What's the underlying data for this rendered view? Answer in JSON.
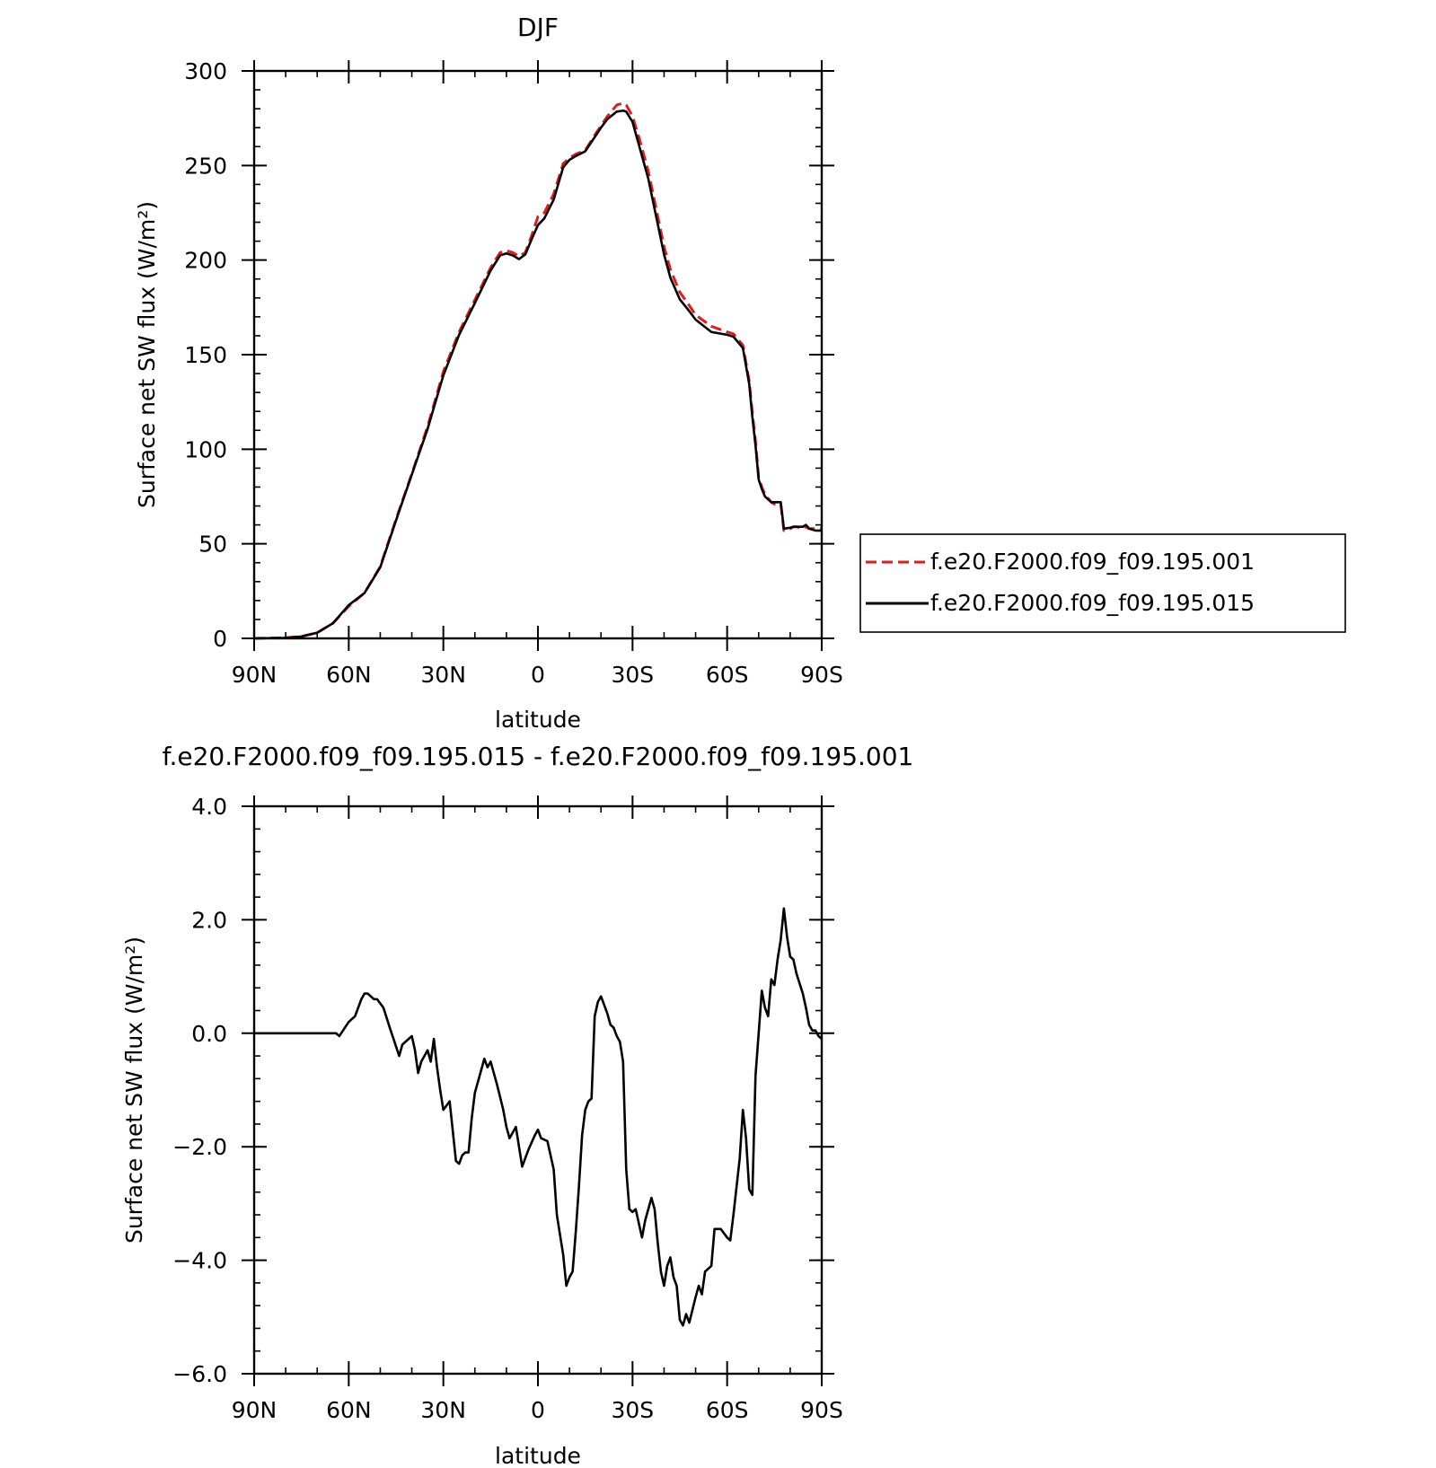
{
  "chart_data": [
    {
      "type": "line",
      "title": "DJF",
      "xlabel": "latitude",
      "ylabel": "Surface net SW flux (W/m²)",
      "xlim": [
        90,
        -90
      ],
      "ylim": [
        0,
        300
      ],
      "x_ticks": [
        {
          "value": 90,
          "label": "90N"
        },
        {
          "value": 60,
          "label": "60N"
        },
        {
          "value": 30,
          "label": "30N"
        },
        {
          "value": 0,
          "label": "0"
        },
        {
          "value": -30,
          "label": "30S"
        },
        {
          "value": -60,
          "label": "60S"
        },
        {
          "value": -90,
          "label": "90S"
        }
      ],
      "y_ticks": [
        {
          "value": 0,
          "label": "0"
        },
        {
          "value": 50,
          "label": "50"
        },
        {
          "value": 100,
          "label": "100"
        },
        {
          "value": 150,
          "label": "150"
        },
        {
          "value": 200,
          "label": "200"
        },
        {
          "value": 250,
          "label": "250"
        },
        {
          "value": 300,
          "label": "300"
        }
      ],
      "grid": false,
      "legend_position": "right",
      "series": [
        {
          "name": "f.e20.F2000.f09_f09.195.001",
          "color": "#e41a1c",
          "dash": "dashed",
          "x": [
            90,
            80,
            75,
            70,
            65,
            60,
            55,
            50,
            45,
            40,
            35,
            30,
            25,
            20,
            15,
            12,
            10,
            8,
            6,
            4,
            2,
            0,
            -2,
            -5,
            -8,
            -10,
            -12,
            -15,
            -18,
            -20,
            -22,
            -25,
            -27,
            -28,
            -30,
            -32,
            -35,
            -38,
            -40,
            -42,
            -45,
            -48,
            -50,
            -55,
            -60,
            -62,
            -65,
            -67,
            -68,
            -69,
            -70,
            -71,
            -72,
            -74,
            -75,
            -77,
            -78,
            -80,
            -81,
            -82,
            -84,
            -85,
            -86,
            -88,
            -90
          ],
          "values": [
            0,
            0.3,
            1,
            3,
            8,
            17,
            24,
            38,
            63,
            87,
            112,
            141,
            162,
            179,
            196,
            204,
            205,
            204,
            202,
            204,
            213,
            223,
            225,
            235,
            251,
            254,
            256,
            258,
            266,
            271,
            276,
            282,
            283,
            282,
            276,
            265,
            247,
            223,
            207,
            195,
            183,
            176,
            171,
            165,
            162,
            161,
            155,
            136,
            119,
            104,
            85,
            80,
            76,
            72,
            71,
            71,
            57,
            58,
            59,
            59,
            58,
            59,
            58,
            58,
            58
          ]
        },
        {
          "name": "f.e20.F2000.f09_f09.195.015",
          "color": "#000000",
          "dash": "solid",
          "x": [
            90,
            80,
            75,
            70,
            65,
            60,
            55,
            50,
            45,
            40,
            35,
            30,
            25,
            20,
            15,
            12,
            10,
            8,
            6,
            4,
            2,
            0,
            -2,
            -5,
            -8,
            -10,
            -12,
            -15,
            -18,
            -20,
            -22,
            -25,
            -27,
            -28,
            -30,
            -32,
            -35,
            -38,
            -40,
            -42,
            -45,
            -48,
            -50,
            -55,
            -60,
            -62,
            -65,
            -67,
            -68,
            -69,
            -70,
            -71,
            -72,
            -74,
            -75,
            -77,
            -78,
            -80,
            -81,
            -82,
            -84,
            -85,
            -86,
            -88,
            -90
          ],
          "values": [
            0,
            0.3,
            1,
            3,
            8,
            17.6,
            24,
            37.6,
            62.4,
            86.6,
            110.7,
            139,
            160.5,
            177.3,
            194.5,
            202.5,
            203.5,
            202.5,
            200.5,
            203,
            211,
            218.5,
            222,
            232,
            249,
            253,
            255,
            257.5,
            265,
            270,
            274.5,
            278.5,
            279,
            278.5,
            273,
            261,
            243,
            219,
            203,
            190.7,
            179.2,
            173,
            168.5,
            162,
            160.5,
            159.5,
            153.5,
            134.5,
            117,
            102,
            84,
            79,
            75,
            72,
            72,
            72,
            58,
            58.5,
            59,
            59,
            59,
            60,
            58,
            57,
            57
          ]
        }
      ]
    },
    {
      "type": "line",
      "title": "f.e20.F2000.f09_f09.195.015 - f.e20.F2000.f09_f09.195.001",
      "xlabel": "latitude",
      "ylabel": "Surface net SW flux (W/m²)",
      "xlim": [
        90,
        -90
      ],
      "ylim": [
        -6,
        4
      ],
      "x_ticks": [
        {
          "value": 90,
          "label": "90N"
        },
        {
          "value": 60,
          "label": "60N"
        },
        {
          "value": 30,
          "label": "30N"
        },
        {
          "value": 0,
          "label": "0"
        },
        {
          "value": -30,
          "label": "30S"
        },
        {
          "value": -60,
          "label": "60S"
        },
        {
          "value": -90,
          "label": "90S"
        }
      ],
      "y_ticks": [
        {
          "value": -6,
          "label": "−6.0"
        },
        {
          "value": -4,
          "label": "−4.0"
        },
        {
          "value": -2,
          "label": "−2.0"
        },
        {
          "value": 0,
          "label": "0.0"
        },
        {
          "value": 2,
          "label": "2.0"
        },
        {
          "value": 4,
          "label": "4.0"
        }
      ],
      "grid": false,
      "series": [
        {
          "color": "#000000",
          "dash": "solid",
          "x": [
            90,
            80,
            72,
            68,
            64,
            63,
            60,
            58,
            57,
            56,
            55,
            54,
            52,
            51,
            49,
            47,
            44,
            43,
            41,
            40,
            39,
            38,
            37,
            35,
            34,
            33,
            32,
            31,
            30,
            28,
            26,
            25,
            24,
            23,
            22,
            21,
            20,
            19,
            17,
            16,
            15,
            14,
            13,
            11,
            10,
            9,
            7,
            5,
            3,
            1,
            0,
            -1,
            -3,
            -5,
            -6,
            -8,
            -9,
            -10,
            -11,
            -12,
            -13,
            -14,
            -15,
            -16,
            -17,
            -18,
            -19,
            -20,
            -22,
            -23,
            -24,
            -25,
            -26,
            -27,
            -28,
            -29,
            -30,
            -31,
            -32,
            -33,
            -34,
            -35,
            -36,
            -37,
            -38,
            -39,
            -40,
            -41,
            -42,
            -43,
            -44,
            -45,
            -46,
            -47,
            -48,
            -50,
            -51,
            -52,
            -53,
            -55,
            -56,
            -58,
            -60,
            -61,
            -62,
            -64,
            -65,
            -66,
            -67,
            -68,
            -69,
            -70,
            -71,
            -72,
            -73,
            -74,
            -75,
            -76,
            -77,
            -78,
            -79,
            -80,
            -81,
            -82,
            -84,
            -85,
            -86,
            -87,
            -88,
            -89,
            -90
          ],
          "values": [
            0,
            0,
            0,
            0,
            0,
            -0.05,
            0.2,
            0.3,
            0.45,
            0.6,
            0.7,
            0.7,
            0.6,
            0.6,
            0.45,
            0.1,
            -0.4,
            -0.2,
            -0.1,
            -0.05,
            -0.3,
            -0.7,
            -0.5,
            -0.3,
            -0.5,
            -0.1,
            -0.6,
            -1.0,
            -1.35,
            -1.2,
            -2.25,
            -2.3,
            -2.15,
            -2.1,
            -2.1,
            -1.5,
            -1.05,
            -0.85,
            -0.45,
            -0.6,
            -0.5,
            -0.7,
            -0.9,
            -1.35,
            -1.65,
            -1.85,
            -1.65,
            -2.35,
            -2.05,
            -1.8,
            -1.7,
            -1.85,
            -1.9,
            -2.4,
            -3.2,
            -3.9,
            -4.45,
            -4.3,
            -4.2,
            -3.5,
            -2.7,
            -1.8,
            -1.35,
            -1.2,
            -1.15,
            0.3,
            0.55,
            0.65,
            0.35,
            0.15,
            0.1,
            -0.05,
            -0.15,
            -0.5,
            -2.4,
            -3.1,
            -3.15,
            -3.1,
            -3.35,
            -3.6,
            -3.3,
            -3.1,
            -2.9,
            -3.1,
            -3.7,
            -4.2,
            -4.45,
            -4.1,
            -3.95,
            -4.3,
            -4.45,
            -5.05,
            -5.15,
            -4.95,
            -5.1,
            -4.65,
            -4.45,
            -4.6,
            -4.2,
            -4.1,
            -3.45,
            -3.45,
            -3.6,
            -3.65,
            -3.2,
            -2.2,
            -1.35,
            -1.85,
            -2.75,
            -2.85,
            -0.75,
            0.0,
            0.75,
            0.45,
            0.3,
            0.95,
            0.85,
            1.3,
            1.65,
            2.2,
            1.7,
            1.35,
            1.3,
            1.05,
            0.7,
            0.45,
            0.15,
            0.05,
            0.05,
            -0.05,
            -0.1
          ]
        }
      ]
    }
  ]
}
